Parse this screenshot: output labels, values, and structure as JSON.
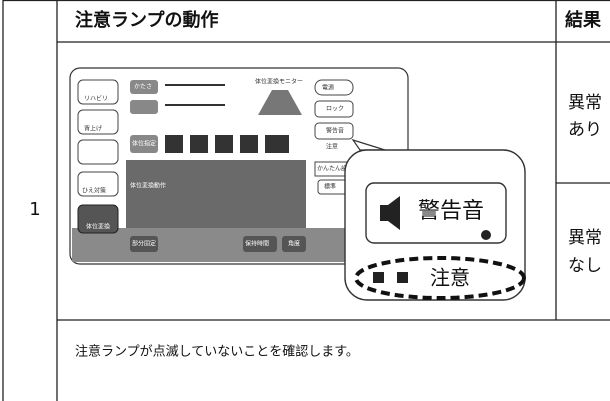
{
  "row_number": "1",
  "header": {
    "action": "注意ランプの動作",
    "result": "結果"
  },
  "results": [
    [
      "異常",
      "あり"
    ],
    [
      "異常",
      "なし"
    ]
  ],
  "panel": {
    "rehab": "リハビリ",
    "back_up": "背上げ",
    "cold": "ひえ対策",
    "turn": "体位変換",
    "firmness": "かたさ",
    "monitor": "体位変換モニター",
    "power": "電源",
    "lock": "ロック",
    "alarm": "警告音",
    "caution": "注意",
    "easy": "かんたん設定",
    "standard": "標準",
    "turn_action": "体位変換動作",
    "position": "体位指定",
    "partial": "部分固定",
    "hold": "保持時間",
    "angle": "角度"
  },
  "callout": {
    "button": "警告音",
    "lamp": "注意"
  },
  "note": "注意ランプが点滅していないことを確認します。"
}
